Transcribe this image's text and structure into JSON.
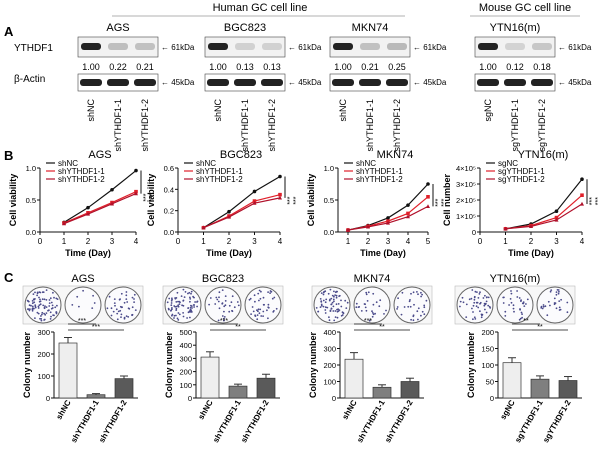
{
  "colors": {
    "shNC": "#111111",
    "knock1": "#e0202a",
    "knock2": "#b0102a",
    "bar_ctrl": "#eeeeee",
    "bar_k1": "#7f7f7f",
    "bar_k2": "#5a5a5a"
  },
  "header": {
    "human_group": "Human GC cell line",
    "mouse_group": "Mouse GC cell line"
  },
  "panel_A": {
    "letter": "A",
    "row_labels": [
      "YTHDF1",
      "β-Actin"
    ],
    "size_marker_top": "61kDa",
    "size_marker_bottom": "45kDa",
    "blots": [
      {
        "cell_line": "AGS",
        "lanes": [
          "shNC",
          "shYTHDF1-1",
          "shYTHDF1-2"
        ],
        "quant": [
          "1.00",
          "0.22",
          "0.21"
        ]
      },
      {
        "cell_line": "BGC823",
        "lanes": [
          "shNC",
          "shYTHDF1-1",
          "shYTHDF1-2"
        ],
        "quant": [
          "1.00",
          "0.13",
          "0.13"
        ]
      },
      {
        "cell_line": "MKN74",
        "lanes": [
          "shNC",
          "shYTHDF1-1",
          "shYTHDF1-2"
        ],
        "quant": [
          "1.00",
          "0.21",
          "0.25"
        ]
      },
      {
        "cell_line": "YTN16(m)",
        "lanes": [
          "sgNC",
          "sgYTHDF1-1",
          "sgYTHDF1-2"
        ],
        "quant": [
          "1.00",
          "0.12",
          "0.18"
        ]
      }
    ]
  },
  "panel_B": {
    "letter": "B"
  },
  "panel_C": {
    "letter": "C"
  },
  "chart_data": [
    {
      "type": "line",
      "title": "AGS",
      "xlabel": "Time (Day)",
      "ylabel": "Cell viability",
      "xlim": [
        0,
        4
      ],
      "ylim": [
        0.0,
        1.0
      ],
      "x": [
        1,
        2,
        3,
        4
      ],
      "xticks": [
        "0",
        "1",
        "2",
        "3",
        "4"
      ],
      "yticks": [
        "0.0",
        "0.5",
        "1.0"
      ],
      "series": [
        {
          "name": "shNC",
          "values": [
            0.15,
            0.38,
            0.66,
            0.96
          ]
        },
        {
          "name": "shYTHDF1-1",
          "values": [
            0.14,
            0.3,
            0.46,
            0.63
          ]
        },
        {
          "name": "shYTHDF1-2",
          "values": [
            0.13,
            0.28,
            0.44,
            0.6
          ]
        }
      ],
      "annotation": "***"
    },
    {
      "type": "line",
      "title": "BGC823",
      "xlabel": "Time (Day)",
      "ylabel": "Cell viability",
      "xlim": [
        0,
        4
      ],
      "ylim": [
        0.0,
        0.6
      ],
      "x": [
        1,
        2,
        3,
        4
      ],
      "xticks": [
        "0",
        "1",
        "2",
        "3",
        "4"
      ],
      "yticks": [
        "0.0",
        "0.2",
        "0.4",
        "0.6"
      ],
      "series": [
        {
          "name": "shNC",
          "values": [
            0.04,
            0.19,
            0.38,
            0.52
          ]
        },
        {
          "name": "shYTHDF1-1",
          "values": [
            0.04,
            0.15,
            0.29,
            0.35
          ]
        },
        {
          "name": "shYTHDF1-2",
          "values": [
            0.04,
            0.14,
            0.27,
            0.32
          ]
        }
      ],
      "annotation": "***"
    },
    {
      "type": "line",
      "title": "MKN74",
      "xlabel": "Time (Day)",
      "ylabel": "Cell viability",
      "xlim": [
        0.5,
        5
      ],
      "ylim": [
        0.0,
        1.0
      ],
      "x": [
        1,
        2,
        3,
        4,
        5
      ],
      "xticks": [
        "1",
        "2",
        "3",
        "4",
        "5"
      ],
      "yticks": [
        "0.0",
        "0.5",
        "1.0"
      ],
      "series": [
        {
          "name": "shNC",
          "values": [
            0.03,
            0.1,
            0.22,
            0.42,
            0.75
          ]
        },
        {
          "name": "shYTHDF1-1",
          "values": [
            0.03,
            0.09,
            0.17,
            0.29,
            0.55
          ]
        },
        {
          "name": "shYTHDF1-2",
          "values": [
            0.03,
            0.08,
            0.14,
            0.24,
            0.4
          ]
        }
      ],
      "annotation": "***"
    },
    {
      "type": "line",
      "title": "YTN16(m)",
      "xlabel": "Time (Day)",
      "ylabel": "Cell number",
      "xlim": [
        0,
        4
      ],
      "ylim": [
        0,
        400000
      ],
      "x": [
        1,
        2,
        3,
        4
      ],
      "xticks": [
        "0",
        "1",
        "2",
        "3",
        "4"
      ],
      "yticks": [
        "0",
        "1×10⁵",
        "2×10⁵",
        "3×10⁵",
        "4×10⁵"
      ],
      "series": [
        {
          "name": "sgNC",
          "values": [
            20000,
            50000,
            130000,
            330000
          ]
        },
        {
          "name": "sgYTHDF1-1",
          "values": [
            20000,
            40000,
            90000,
            230000
          ]
        },
        {
          "name": "sgYTHDF1-2",
          "values": [
            20000,
            35000,
            75000,
            175000
          ]
        }
      ],
      "annotation": "***"
    },
    {
      "type": "bar",
      "title": "AGS",
      "ylabel": "Colony number",
      "categories": [
        "shNC",
        "shYTHDF1-1",
        "shYTHDF1-2"
      ],
      "values": [
        250,
        15,
        88
      ],
      "errors": [
        25,
        5,
        12
      ],
      "ylim": [
        0,
        300
      ],
      "yticks": [
        "0",
        "100",
        "200",
        "300"
      ],
      "brackets": [
        {
          "from": 0,
          "to": 1,
          "label": "***"
        },
        {
          "from": 0,
          "to": 2,
          "label": "***"
        }
      ]
    },
    {
      "type": "bar",
      "title": "BGC823",
      "ylabel": "Colony number",
      "categories": [
        "shNC",
        "shYTHDF1-1",
        "shYTHDF1-2"
      ],
      "values": [
        310,
        90,
        150
      ],
      "errors": [
        40,
        15,
        30
      ],
      "ylim": [
        0,
        500
      ],
      "yticks": [
        "0",
        "100",
        "200",
        "300",
        "400",
        "500"
      ],
      "brackets": [
        {
          "from": 0,
          "to": 1,
          "label": "***"
        },
        {
          "from": 0,
          "to": 2,
          "label": "**"
        }
      ]
    },
    {
      "type": "bar",
      "title": "MKN74",
      "ylabel": "Colony number",
      "categories": [
        "shNC",
        "shYTHDF1-1",
        "shYTHDF1-2"
      ],
      "values": [
        235,
        65,
        100
      ],
      "errors": [
        40,
        15,
        20
      ],
      "ylim": [
        0,
        400
      ],
      "yticks": [
        "0",
        "100",
        "200",
        "300",
        "400"
      ],
      "brackets": [
        {
          "from": 0,
          "to": 1,
          "label": "***"
        },
        {
          "from": 0,
          "to": 2,
          "label": "**"
        }
      ]
    },
    {
      "type": "bar",
      "title": "YTN16(m)",
      "ylabel": "Colony number",
      "categories": [
        "sgNC",
        "sgYTHDF1-1",
        "sgYTHDF1-2"
      ],
      "values": [
        107,
        57,
        53
      ],
      "errors": [
        15,
        10,
        12
      ],
      "ylim": [
        0,
        200
      ],
      "yticks": [
        "0",
        "50",
        "100",
        "150",
        "200"
      ],
      "brackets": [
        {
          "from": 0,
          "to": 1,
          "label": "**"
        },
        {
          "from": 0,
          "to": 2,
          "label": "**"
        }
      ]
    }
  ]
}
